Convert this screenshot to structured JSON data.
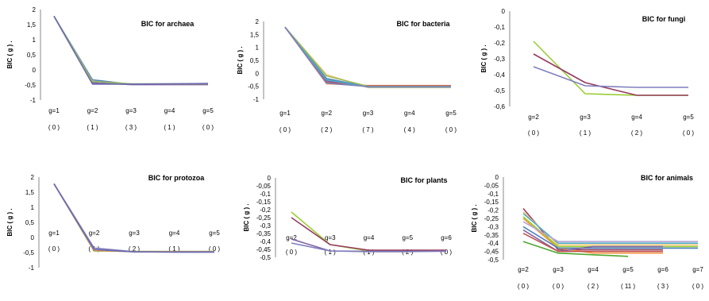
{
  "chart_data": [
    {
      "type": "line",
      "title": "BIC for archaea",
      "ylabel": "BIC ( g ) .",
      "ylim": [
        -1,
        2
      ],
      "yticks": [
        -1,
        -0.5,
        0,
        0.5,
        1,
        1.5,
        2
      ],
      "ytick_labels": [
        "-1",
        "-0,5",
        "0",
        "0,5",
        "1",
        "1,5",
        "2"
      ],
      "categories": [
        "g=1",
        "g=2",
        "g=3",
        "g=4",
        "g=5"
      ],
      "counts": [
        "( 0 )",
        "( 1 )",
        "( 3 )",
        "( 1 )",
        "( 0 )"
      ],
      "series": [
        {
          "color": "#7f7fbf",
          "values": [
            1.78,
            -0.45,
            -0.47,
            -0.47,
            -0.47
          ]
        },
        {
          "color": "#4f81bd",
          "values": [
            1.78,
            -0.33,
            -0.48,
            -0.48,
            -0.48
          ]
        },
        {
          "color": "#8064a2",
          "values": [
            1.78,
            -0.42,
            -0.49,
            -0.49,
            -0.49
          ]
        },
        {
          "color": "#9bbb59",
          "values": [
            1.78,
            -0.38,
            -0.46,
            -0.46,
            -0.46
          ]
        },
        {
          "color": "#6b6bb0",
          "values": [
            1.78,
            -0.47,
            -0.47,
            -0.46,
            -0.45
          ]
        }
      ]
    },
    {
      "type": "line",
      "title": "BIC for bacteria",
      "ylabel": "BIC ( g ) .",
      "ylim": [
        -1,
        2
      ],
      "yticks": [
        -1,
        -0.5,
        0,
        0.5,
        1,
        1.5,
        2
      ],
      "ytick_labels": [
        "-1",
        "-0,5",
        "0",
        "0,5",
        "1",
        "1,5",
        "2"
      ],
      "categories": [
        "g=1",
        "g=2",
        "g=3",
        "g=4",
        "g=5"
      ],
      "counts": [
        "( 0 )",
        "( 2 )",
        "( 7 )",
        "( 4 )",
        "( 0 )"
      ],
      "series": [
        {
          "color": "#f5c77e",
          "values": [
            1.78,
            -0.05,
            -0.55,
            -0.55,
            -0.55
          ]
        },
        {
          "color": "#f79646",
          "values": [
            1.78,
            -0.4,
            -0.47,
            -0.47,
            -0.47
          ]
        },
        {
          "color": "#4f81bd",
          "values": [
            1.78,
            -0.2,
            -0.52,
            -0.52,
            -0.52
          ]
        },
        {
          "color": "#8064a2",
          "values": [
            1.78,
            -0.3,
            -0.5,
            -0.5,
            -0.5
          ]
        },
        {
          "color": "#c0504d",
          "values": [
            1.78,
            -0.35,
            -0.48,
            -0.48,
            -0.48
          ]
        },
        {
          "color": "#9bbb59",
          "values": [
            1.78,
            -0.1,
            -0.5,
            -0.5,
            -0.5
          ]
        },
        {
          "color": "#4bacc6",
          "values": [
            1.78,
            -0.25,
            -0.53,
            -0.53,
            -0.53
          ]
        },
        {
          "color": "#7f7fbf",
          "values": [
            1.78,
            -0.38,
            -0.51,
            -0.51,
            -0.51
          ]
        }
      ]
    },
    {
      "type": "line",
      "title": "BIC for fungi",
      "ylabel": "BIC ( g ) .",
      "ylim": [
        -0.6,
        0
      ],
      "yticks": [
        -0.6,
        -0.5,
        -0.4,
        -0.3,
        -0.2,
        -0.1,
        0
      ],
      "ytick_labels": [
        "-0,6",
        "-0,5",
        "-0,4",
        "-0,3",
        "-0,2",
        "-0,1",
        "0"
      ],
      "categories": [
        "g=2",
        "g=3",
        "g=4",
        "g=5"
      ],
      "counts": [
        "( 0 )",
        "( 1 )",
        "( 2 )",
        "( 0 )"
      ],
      "series": [
        {
          "color": "#9acd32",
          "values": [
            -0.19,
            -0.52,
            -0.53,
            -0.53
          ]
        },
        {
          "color": "#953b5f",
          "values": [
            -0.27,
            -0.45,
            -0.53,
            -0.53
          ]
        },
        {
          "color": "#7f7fbf",
          "values": [
            -0.35,
            -0.47,
            -0.48,
            -0.48
          ]
        }
      ]
    },
    {
      "type": "line",
      "title": "BIC for protozoa",
      "ylabel": "BIC ( g ) .",
      "ylim": [
        -1,
        2
      ],
      "yticks": [
        -1,
        -0.5,
        0,
        0.5,
        1,
        1.5,
        2
      ],
      "ytick_labels": [
        "-1",
        "-0,5",
        "0",
        "0,5",
        "1",
        "1,5",
        "2"
      ],
      "categories": [
        "g=1",
        "g=2",
        "g=3",
        "g=4",
        "g=5"
      ],
      "counts": [
        "( 0 )",
        "( 1 )",
        "( 2 )",
        "( 1 )",
        "( 0 )"
      ],
      "series": [
        {
          "color": "#9bbb59",
          "values": [
            1.78,
            -0.45,
            -0.46,
            -0.46,
            -0.46
          ]
        },
        {
          "color": "#f79646",
          "values": [
            1.78,
            -0.43,
            -0.47,
            -0.47,
            -0.47
          ]
        },
        {
          "color": "#7f7fbf",
          "values": [
            1.78,
            -0.35,
            -0.47,
            -0.49,
            -0.49
          ]
        },
        {
          "color": "#6b6bb0",
          "values": [
            1.78,
            -0.4,
            -0.48,
            -0.48,
            -0.48
          ]
        }
      ]
    },
    {
      "type": "line",
      "title": "BIC for plants",
      "ylabel": "BIC ( g ) .",
      "ylim": [
        -0.5,
        0
      ],
      "yticks": [
        -0.5,
        -0.45,
        -0.4,
        -0.35,
        -0.3,
        -0.25,
        -0.2,
        -0.15,
        -0.1,
        -0.05,
        0
      ],
      "ytick_labels": [
        "-0,5",
        "-0,45",
        "-0,4",
        "-0,35",
        "-0,3",
        "-0,25",
        "-0,2",
        "-0,15",
        "-0,1",
        "-0,05",
        "0"
      ],
      "categories": [
        "g=2",
        "g=3",
        "g=4",
        "g=5",
        "g=6"
      ],
      "counts": [
        "( 0 )",
        "( 1 )",
        "( 1 )",
        "( 2 )",
        "( 0 )"
      ],
      "series": [
        {
          "color": "#9acd32",
          "values": [
            -0.215,
            -0.42,
            -0.46,
            -0.46,
            -0.46
          ]
        },
        {
          "color": "#953b5f",
          "values": [
            -0.25,
            -0.42,
            -0.455,
            -0.455,
            -0.455
          ]
        },
        {
          "color": "#8064a2",
          "values": [
            -0.385,
            -0.46,
            -0.462,
            -0.462,
            -0.462
          ]
        },
        {
          "color": "#7f7fbf",
          "values": [
            -0.41,
            -0.46,
            -0.465,
            -0.465,
            -0.46
          ]
        }
      ]
    },
    {
      "type": "line",
      "title": "BIC for animals",
      "ylabel": "BIC ( g ) .",
      "ylim": [
        -0.5,
        0
      ],
      "yticks": [
        -0.5,
        -0.45,
        -0.4,
        -0.35,
        -0.3,
        -0.25,
        -0.2,
        -0.15,
        -0.1,
        -0.05,
        0
      ],
      "ytick_labels": [
        "-0,5",
        "-0,45",
        "-0,4",
        "-0,35",
        "-0,3",
        "-0,25",
        "-0,2",
        "-0,15",
        "-0,1",
        "-0,05",
        "0"
      ],
      "categories": [
        "g=2",
        "g=3",
        "g=4",
        "g=5",
        "g=6",
        "g=7"
      ],
      "counts": [
        "( 0 )",
        "( 0 )",
        "( 2 )",
        "( 11 )",
        "( 3 )",
        "( 0 )"
      ],
      "series": [
        {
          "color": "#953b5f",
          "values": [
            -0.19,
            -0.44,
            -0.44,
            -0.44,
            -0.44,
            null
          ]
        },
        {
          "color": "#f5c77e",
          "values": [
            -0.21,
            -0.41,
            -0.41,
            -0.41,
            -0.41,
            -0.41
          ]
        },
        {
          "color": "#4bacc6",
          "values": [
            -0.22,
            -0.4,
            -0.4,
            -0.4,
            -0.4,
            -0.4
          ]
        },
        {
          "color": "#f79646",
          "values": [
            -0.25,
            -0.43,
            -0.46,
            -0.46,
            -0.46,
            null
          ]
        },
        {
          "color": "#9acd32",
          "values": [
            -0.24,
            -0.42,
            -0.42,
            -0.42,
            -0.42,
            -0.42
          ]
        },
        {
          "color": "#b7a6d6",
          "values": [
            -0.27,
            -0.39,
            -0.39,
            -0.39,
            -0.39,
            -0.39
          ]
        },
        {
          "color": "#4f81bd",
          "values": [
            -0.3,
            -0.43,
            -0.43,
            -0.43,
            -0.43,
            -0.43
          ]
        },
        {
          "color": "#8064a2",
          "values": [
            -0.32,
            -0.45,
            -0.42,
            -0.42,
            -0.42,
            null
          ]
        },
        {
          "color": "#c0504d",
          "values": [
            -0.34,
            -0.45,
            -0.45,
            -0.45,
            -0.45,
            null
          ]
        },
        {
          "color": "#4ea72e",
          "values": [
            -0.39,
            -0.46,
            -0.47,
            -0.48,
            null,
            null
          ]
        }
      ]
    }
  ]
}
